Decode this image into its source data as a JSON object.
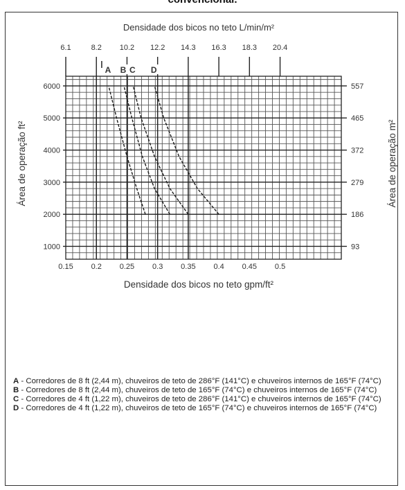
{
  "header_cut": "convencional.",
  "chart_data": {
    "type": "line",
    "title": "Densidade dos bicos no teto L/min/m²",
    "xlabel": "Densidade dos bicos no teto gpm/ft²",
    "ylabel": "Área de operação ft²",
    "ylabel_right": "Área de operação m²",
    "xlim": [
      0.15,
      0.6
    ],
    "ylim": [
      1000,
      6000
    ],
    "x_ticks": [
      0.15,
      0.2,
      0.25,
      0.3,
      0.35,
      0.4,
      0.45,
      0.5
    ],
    "x_tick_labels": [
      "0.15",
      "0.2",
      "0.25",
      "0.3",
      "0.35",
      "0.4",
      "0.45",
      "0.5"
    ],
    "top_ticks": [
      0.15,
      0.2,
      0.25,
      0.3,
      0.35,
      0.4,
      0.45,
      0.5
    ],
    "top_tick_labels": [
      "6.1",
      "8.2",
      "10.2",
      "12.2",
      "14.3",
      "16.3",
      "18.3",
      "20.4"
    ],
    "y_ticks": [
      1000,
      2000,
      3000,
      4000,
      5000,
      6000
    ],
    "y_tick_labels": [
      "1000",
      "2000",
      "3000",
      "4000",
      "5000",
      "6000"
    ],
    "y_right_tick_labels": [
      "93",
      "186",
      "279",
      "372",
      "465",
      "557"
    ],
    "grid": true,
    "series": [
      {
        "name": "A",
        "x": [
          0.28,
          0.266,
          0.25,
          0.233,
          0.22
        ],
        "y": [
          2000,
          2800,
          3800,
          5000,
          6000
        ]
      },
      {
        "name": "B",
        "x": [
          0.32,
          0.295,
          0.275,
          0.258,
          0.245
        ],
        "y": [
          2000,
          2800,
          3800,
          5000,
          6000
        ]
      },
      {
        "name": "C",
        "x": [
          0.35,
          0.32,
          0.295,
          0.273,
          0.26
        ],
        "y": [
          2000,
          2800,
          3800,
          5000,
          6000
        ]
      },
      {
        "name": "D",
        "x": [
          0.4,
          0.365,
          0.335,
          0.31,
          0.295
        ],
        "y": [
          2000,
          2800,
          3800,
          5000,
          6000
        ]
      }
    ]
  },
  "notes": [
    {
      "letter": "A",
      "text": " - Corredores de 8 ft (2,44 m), chuveiros de teto de 286°F (141°C) e chuveiros internos de 165°F (74°C)"
    },
    {
      "letter": "B",
      "text": " - Corredores de 8 ft (2,44 m), chuveiros de teto de 165°F (74°C) e chuveiros internos de 165°F (74°C)"
    },
    {
      "letter": "C",
      "text": " - Corredores de 4 ft (1,22 m), chuveiros de teto de 286°F (141°C) e chuveiros internos de 165°F (74°C)"
    },
    {
      "letter": "D",
      "text": " - Corredores de 4 ft (1,22 m), chuveiros de teto de 165°F (74°C) e chuveiros internos de 165°F (74°C)"
    }
  ]
}
